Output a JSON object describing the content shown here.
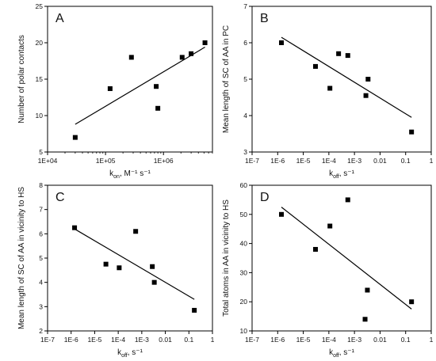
{
  "chart_data": [
    {
      "type": "scatter",
      "panel_label": "A",
      "xlabel": {
        "main": "k",
        "sub": "on",
        "rest": ", M⁻¹ s⁻¹"
      },
      "ylabel": "Number of polar contacts",
      "x_scale": "log",
      "xlim": [
        10000,
        7000000
      ],
      "ylim": [
        5,
        25
      ],
      "x_ticks": [
        10000,
        100000,
        1000000
      ],
      "x_tick_labels": [
        "1E+04",
        "1E+05",
        "1E+06"
      ],
      "y_ticks": [
        5,
        10,
        15,
        20,
        25
      ],
      "y_tick_labels": [
        "5",
        "10",
        "15",
        "20",
        "25"
      ],
      "points": [
        {
          "x": 30000,
          "y": 7
        },
        {
          "x": 120000,
          "y": 13.7
        },
        {
          "x": 280000,
          "y": 18
        },
        {
          "x": 750000,
          "y": 14
        },
        {
          "x": 800000,
          "y": 11
        },
        {
          "x": 2100000,
          "y": 18
        },
        {
          "x": 3000000,
          "y": 18.5
        },
        {
          "x": 5200000,
          "y": 20
        }
      ],
      "trendline": [
        {
          "x": 30000,
          "y": 8.8
        },
        {
          "x": 5200000,
          "y": 19.4
        }
      ],
      "grid": false
    },
    {
      "type": "scatter",
      "panel_label": "B",
      "xlabel": {
        "main": "k",
        "sub": "off",
        "rest": ", s⁻¹"
      },
      "ylabel": "Mean length of SC of AA in PC",
      "x_scale": "log",
      "xlim": [
        1e-07,
        1
      ],
      "ylim": [
        3,
        7
      ],
      "x_ticks": [
        1e-07,
        1e-06,
        1e-05,
        0.0001,
        0.001,
        0.01,
        0.1,
        1
      ],
      "x_tick_labels": [
        "1E-7",
        "1E-6",
        "1E-5",
        "1E-4",
        "1E-3",
        "0.01",
        "0.1",
        "1"
      ],
      "y_ticks": [
        3,
        4,
        5,
        6,
        7
      ],
      "y_tick_labels": [
        "3",
        "4",
        "5",
        "6",
        "7"
      ],
      "points": [
        {
          "x": 1.4e-06,
          "y": 6
        },
        {
          "x": 3e-05,
          "y": 5.35
        },
        {
          "x": 0.00011,
          "y": 4.75
        },
        {
          "x": 0.00024,
          "y": 5.7
        },
        {
          "x": 0.00055,
          "y": 5.65
        },
        {
          "x": 0.0028,
          "y": 4.55
        },
        {
          "x": 0.0034,
          "y": 5
        },
        {
          "x": 0.17,
          "y": 3.55
        }
      ],
      "trendline": [
        {
          "x": 1.4e-06,
          "y": 6.15
        },
        {
          "x": 0.17,
          "y": 3.95
        }
      ],
      "grid": false
    },
    {
      "type": "scatter",
      "panel_label": "C",
      "xlabel": {
        "main": "k",
        "sub": "off",
        "rest": ", s⁻¹"
      },
      "ylabel": "Mean length of SC of AA in vicinity to HS",
      "x_scale": "log",
      "xlim": [
        1e-07,
        1
      ],
      "ylim": [
        2,
        8
      ],
      "x_ticks": [
        1e-07,
        1e-06,
        1e-05,
        0.0001,
        0.001,
        0.01,
        0.1,
        1
      ],
      "x_tick_labels": [
        "1E-7",
        "1E-6",
        "1E-5",
        "1E-4",
        "1E-3",
        "0.01",
        "0.1",
        "1"
      ],
      "y_ticks": [
        2,
        3,
        4,
        5,
        6,
        7,
        8
      ],
      "y_tick_labels": [
        "2",
        "3",
        "4",
        "5",
        "6",
        "7",
        "8"
      ],
      "points": [
        {
          "x": 1.4e-06,
          "y": 6.25
        },
        {
          "x": 3e-05,
          "y": 4.75
        },
        {
          "x": 0.00011,
          "y": 4.6
        },
        {
          "x": 0.00055,
          "y": 6.1
        },
        {
          "x": 0.0028,
          "y": 4.65
        },
        {
          "x": 0.0034,
          "y": 4
        },
        {
          "x": 0.17,
          "y": 2.85
        }
      ],
      "trendline": [
        {
          "x": 1.4e-06,
          "y": 6.2
        },
        {
          "x": 0.17,
          "y": 3.3
        }
      ],
      "grid": false
    },
    {
      "type": "scatter",
      "panel_label": "D",
      "xlabel": {
        "main": "k",
        "sub": "off",
        "rest": ", s⁻¹"
      },
      "ylabel": "Total atoms in AA in vicinity to HS",
      "x_scale": "log",
      "xlim": [
        1e-07,
        1
      ],
      "ylim": [
        10,
        60
      ],
      "x_ticks": [
        1e-07,
        1e-06,
        1e-05,
        0.0001,
        0.001,
        0.01,
        0.1,
        1
      ],
      "x_tick_labels": [
        "1E-7",
        "1E-6",
        "1E-5",
        "1E-4",
        "1E-3",
        "0.01",
        "0.1",
        "1"
      ],
      "y_ticks": [
        10,
        20,
        30,
        40,
        50,
        60
      ],
      "y_tick_labels": [
        "10",
        "20",
        "30",
        "40",
        "50",
        "60"
      ],
      "points": [
        {
          "x": 1.4e-06,
          "y": 50
        },
        {
          "x": 3e-05,
          "y": 38
        },
        {
          "x": 0.00011,
          "y": 46
        },
        {
          "x": 0.00055,
          "y": 55
        },
        {
          "x": 0.0026,
          "y": 14
        },
        {
          "x": 0.0032,
          "y": 24
        },
        {
          "x": 0.17,
          "y": 20
        }
      ],
      "trendline": [
        {
          "x": 1.4e-06,
          "y": 52.5
        },
        {
          "x": 0.17,
          "y": 17.5
        }
      ],
      "grid": false
    }
  ]
}
